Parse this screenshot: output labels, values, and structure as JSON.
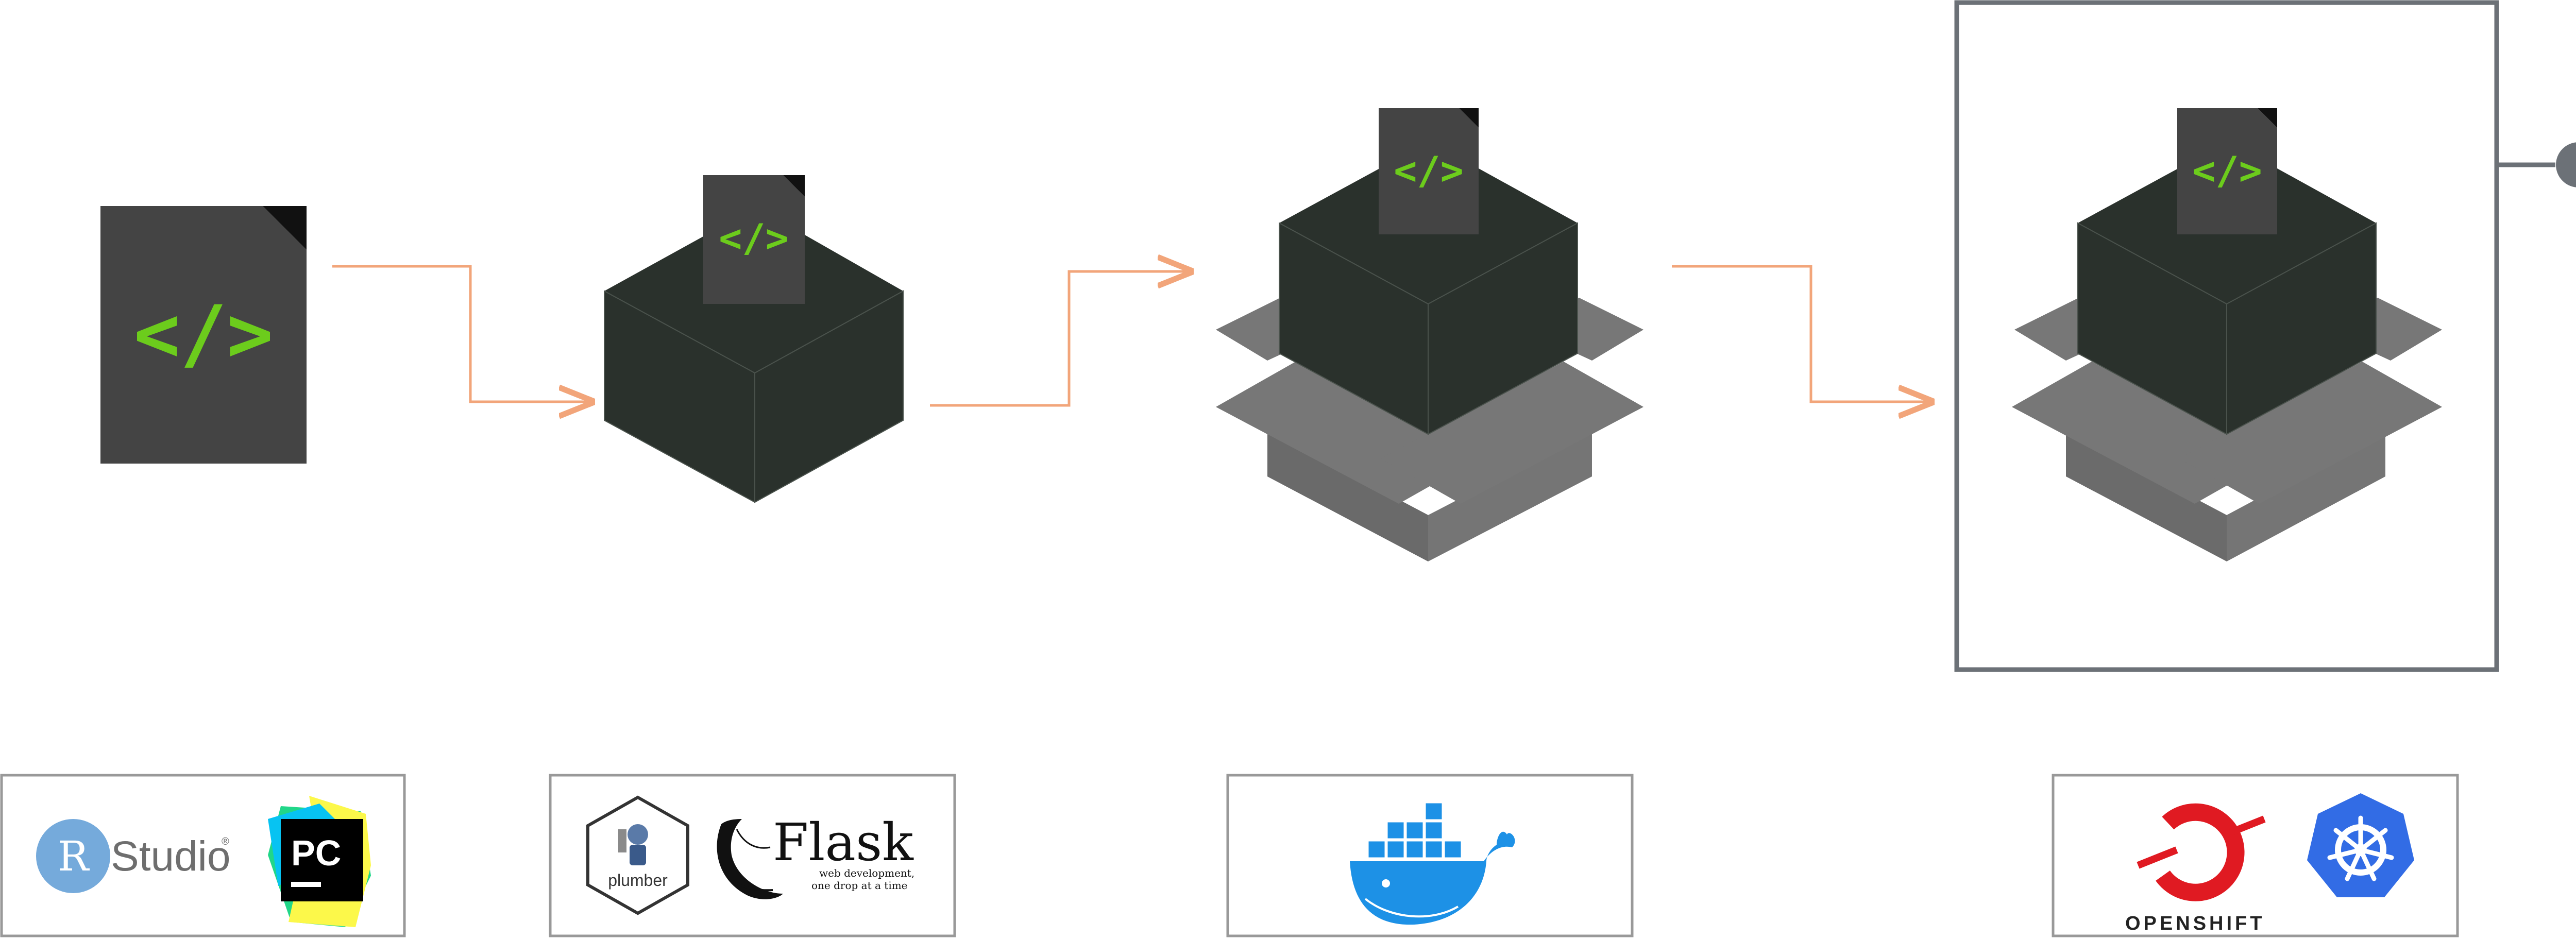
{
  "code_icon_text": "</>",
  "rstudio": {
    "badge": "R",
    "label": "Studio",
    "mark": "®"
  },
  "pycharm": {
    "label": "PC"
  },
  "plumber": {
    "label": "plumber"
  },
  "flask": {
    "title": "Flask",
    "tagline_line1": "web development,",
    "tagline_line2": "one drop at a time"
  },
  "openshift": {
    "label": "OPENSHIFT"
  },
  "colors": {
    "arrow": "#f2a57a",
    "cube": "#2a312c",
    "document": "#444444",
    "code": "#6ccc1c",
    "box_gray": "#6b6b6b",
    "frame": "#6c7177",
    "signal": "#6c7177",
    "docker_blue": "#1d91e6",
    "openshift_red": "#e01a22",
    "kubernetes_blue": "#326ce5"
  }
}
